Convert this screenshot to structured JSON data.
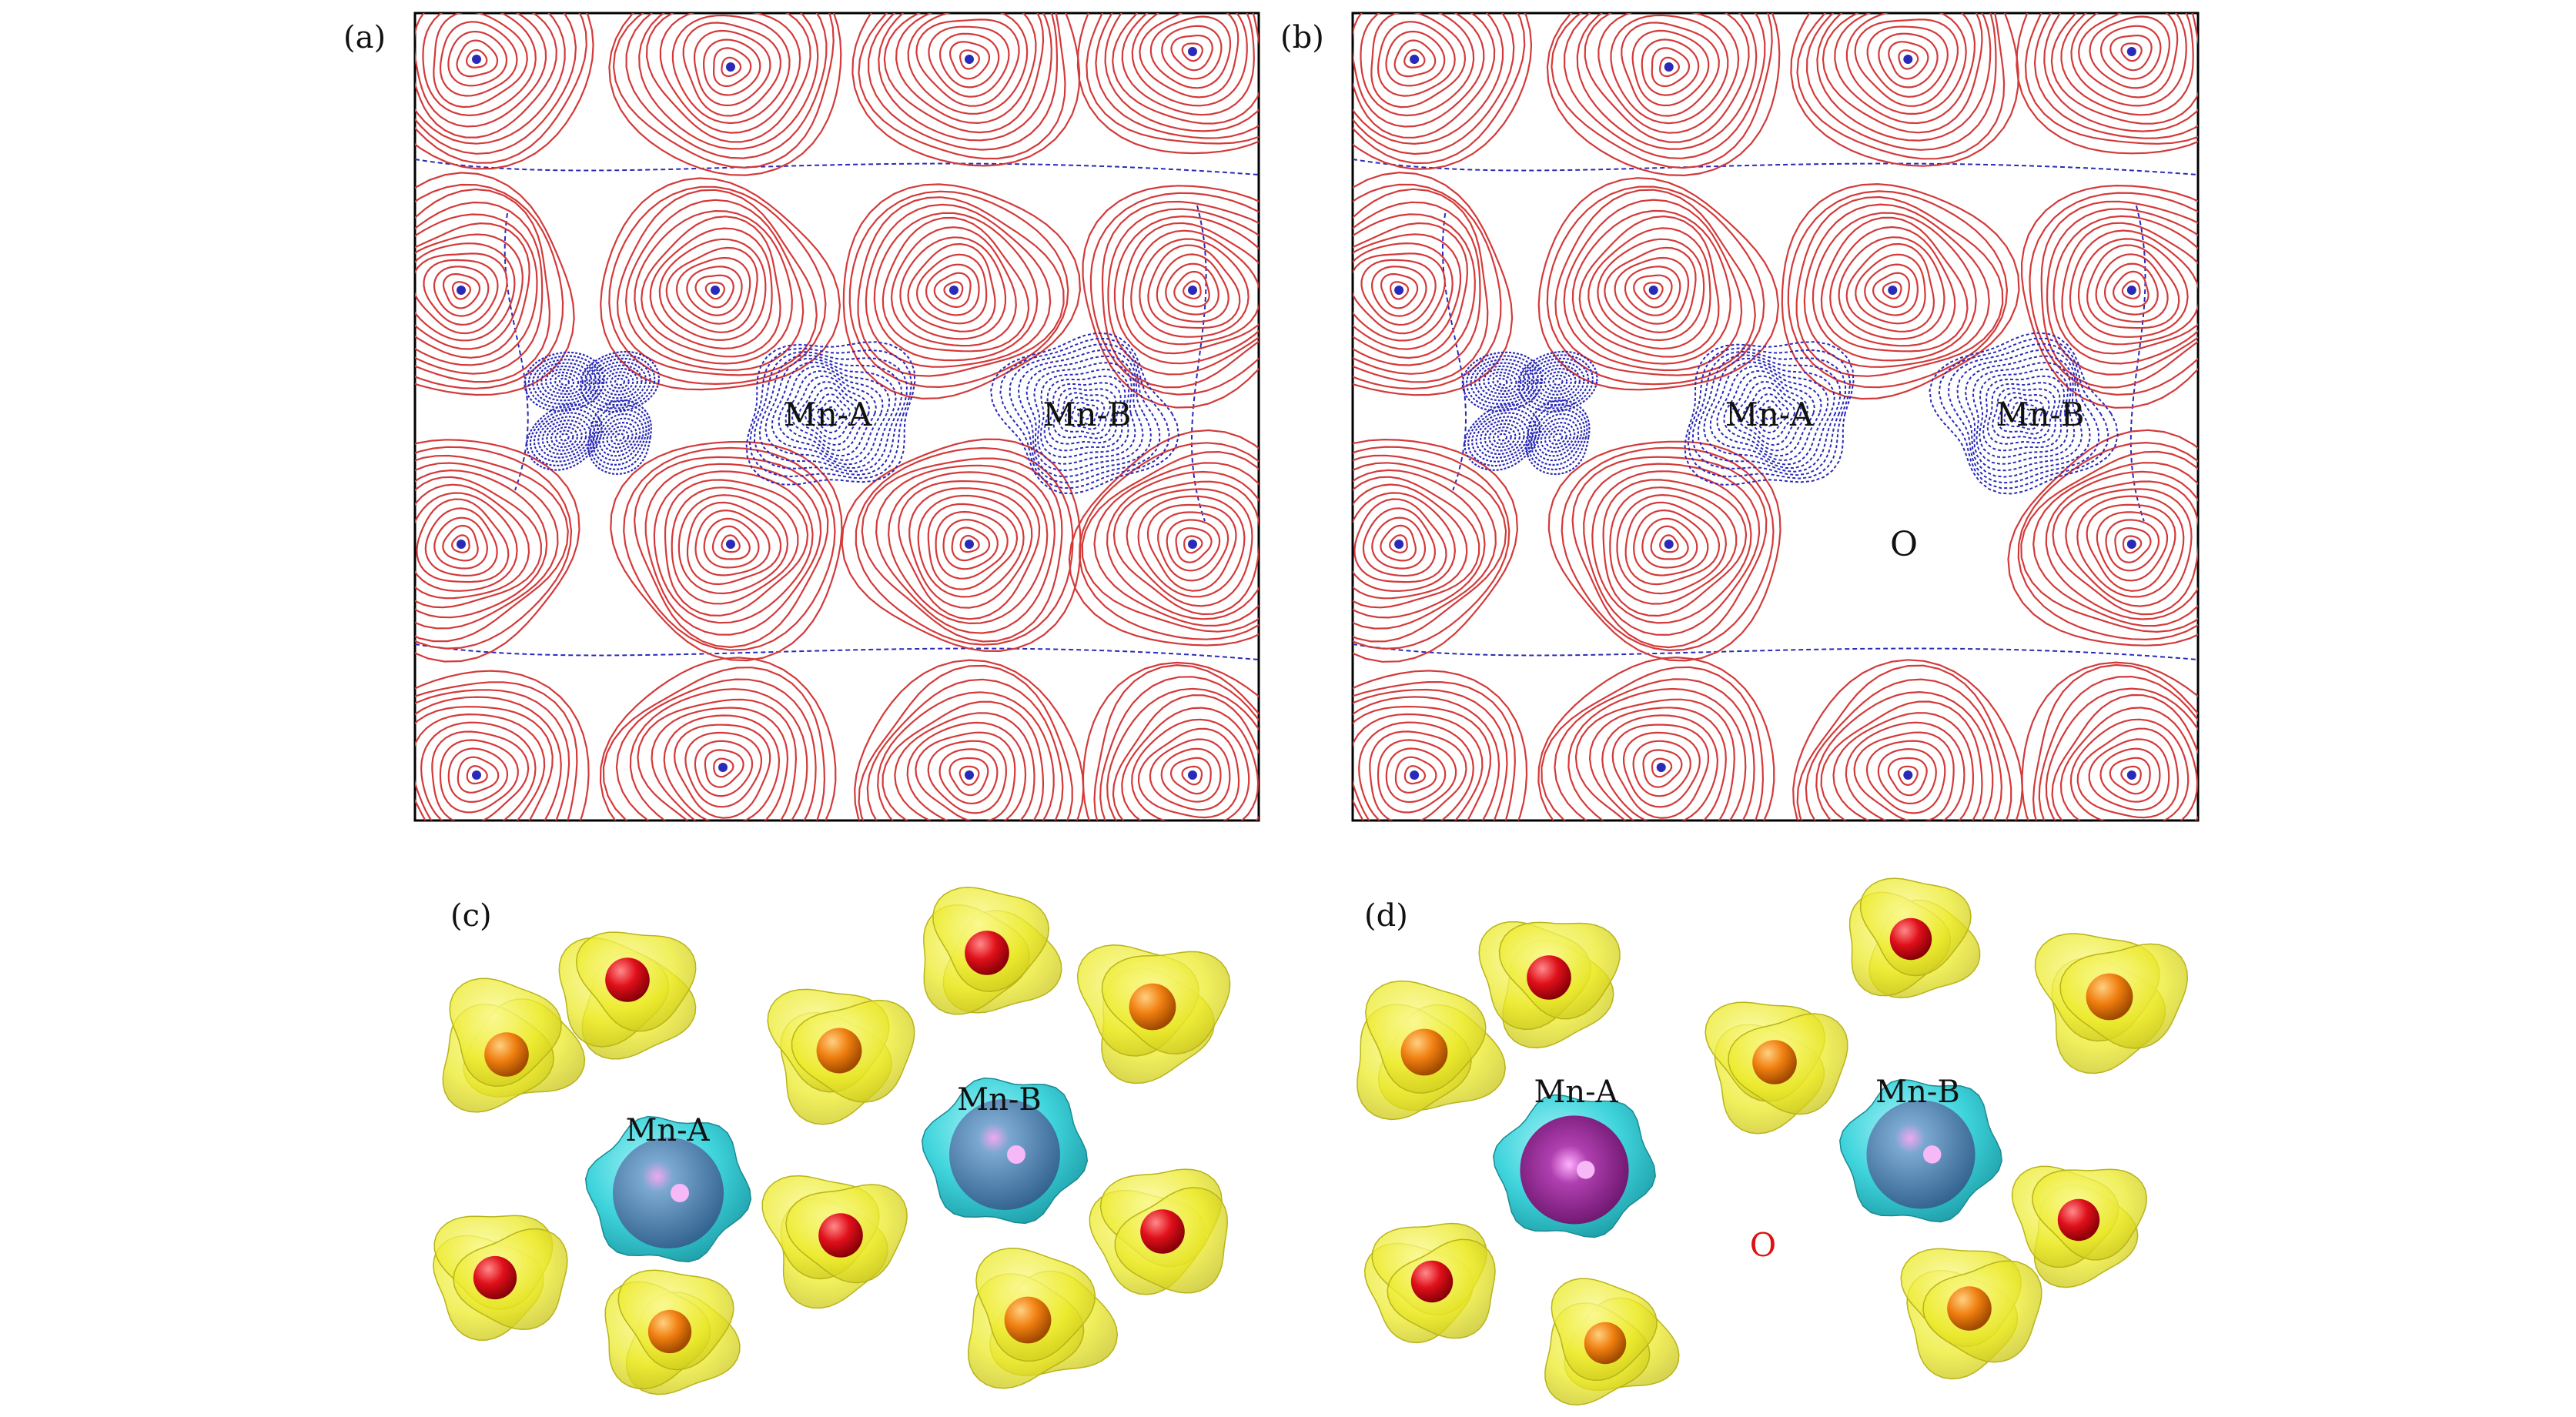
{
  "panels": {
    "a": {
      "label": "(a)",
      "atom_labels": [
        "Mn-A",
        "Mn-B"
      ]
    },
    "b": {
      "label": "(b)",
      "atom_labels": [
        "Mn-A",
        "Mn-B",
        "O"
      ]
    },
    "c": {
      "label": "(c)",
      "atom_labels": [
        "Mn-A",
        "Mn-B"
      ]
    },
    "d": {
      "label": "(d)",
      "atom_labels": [
        "Mn-A",
        "Mn-B",
        "O"
      ]
    }
  },
  "colors": {
    "positive_contour": "#d33a3a",
    "negative_contour": "#2a2ab8",
    "isosurface_yellow": "#ecea2a",
    "isosurface_cyan": "#3fd4dc",
    "oxygen_red": "#e0101a",
    "sphere_orange": "#f07f10",
    "mn_blue": "#4a86b8",
    "mn_purple": "#8a1f8c",
    "vacancy_label_red": "#e01010"
  }
}
